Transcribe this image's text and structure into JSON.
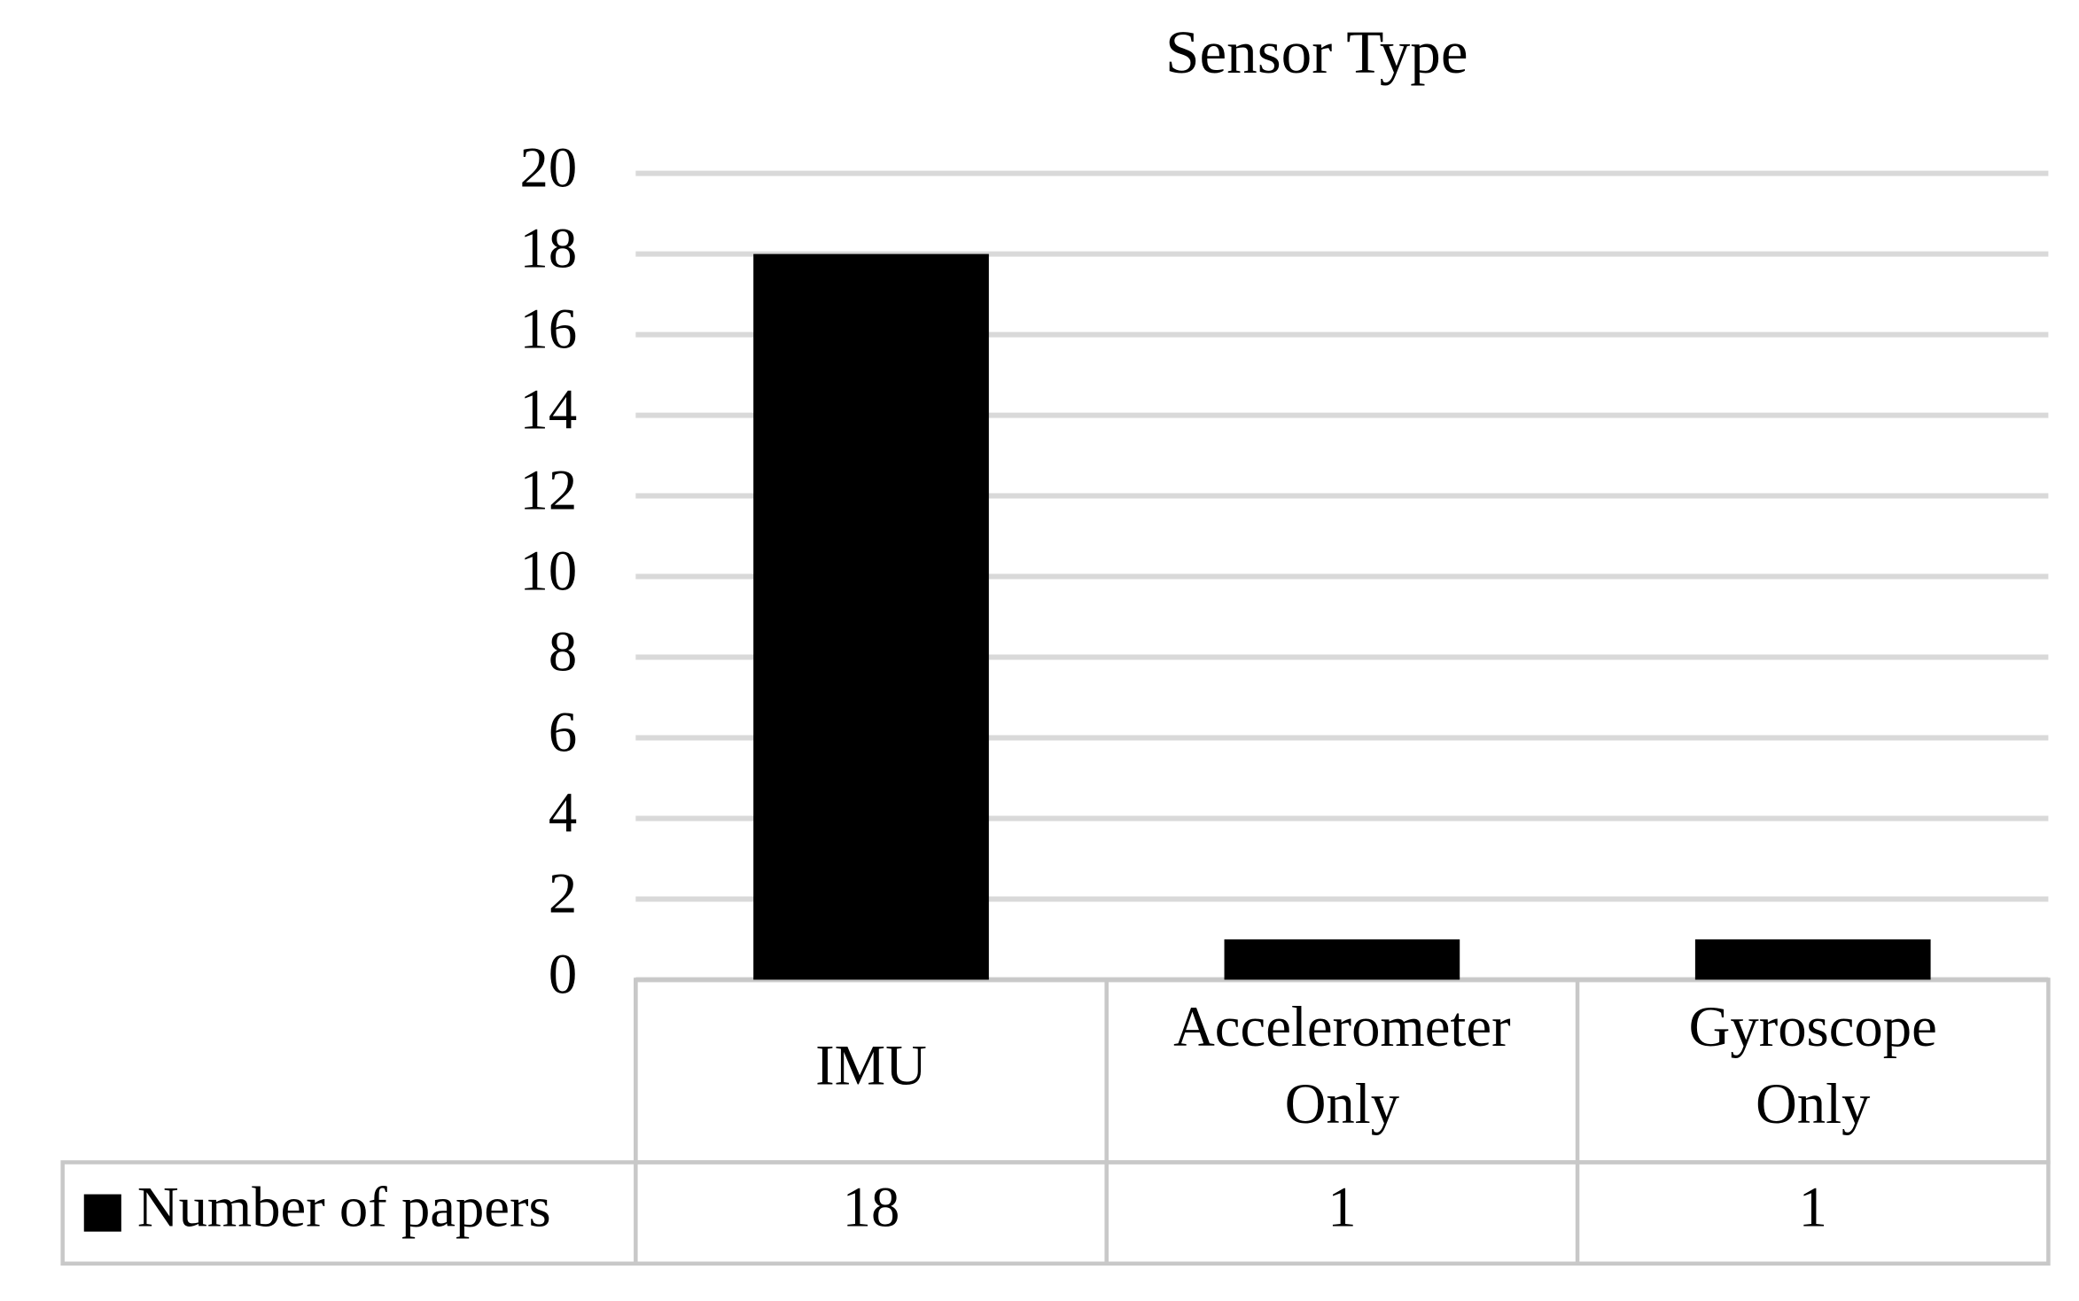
{
  "chart_data": {
    "type": "bar",
    "title": "Sensor Type",
    "categories": [
      "IMU",
      "Accelerometer Only",
      "Gyroscope Only"
    ],
    "series": [
      {
        "name": "Number of papers",
        "color": "#000000",
        "values": [
          18,
          1,
          1
        ]
      }
    ],
    "ylim": [
      0,
      20
    ],
    "yticks": [
      0,
      2,
      4,
      6,
      8,
      10,
      12,
      14,
      16,
      18,
      20
    ],
    "grid": true,
    "legend": "data-table"
  }
}
